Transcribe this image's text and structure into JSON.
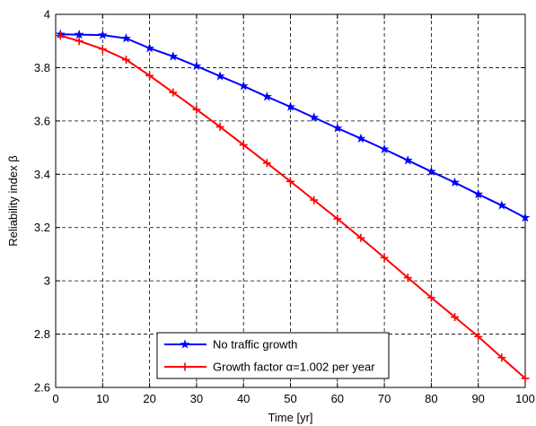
{
  "chart_data": {
    "type": "line",
    "title": "",
    "xlabel": "Time [yr]",
    "ylabel": "Reliability index β",
    "xlim": [
      0,
      100
    ],
    "ylim": [
      2.6,
      4.0
    ],
    "xticks": [
      0,
      10,
      20,
      30,
      40,
      50,
      60,
      70,
      80,
      90,
      100
    ],
    "yticks": [
      2.6,
      2.8,
      3,
      3.2,
      3.4,
      3.6,
      3.8,
      4
    ],
    "ytick_labels": [
      "2.6",
      "2.8",
      "3",
      "3.2",
      "3.4",
      "3.6",
      "3.8",
      "4"
    ],
    "grid": true,
    "legend_position": "bottom-center",
    "series": [
      {
        "name": "No traffic growth",
        "color": "#0000ff",
        "marker": "star",
        "x": [
          1,
          5,
          10,
          15,
          20,
          25,
          30,
          35,
          40,
          45,
          50,
          55,
          60,
          65,
          70,
          75,
          80,
          85,
          90,
          95,
          100
        ],
        "y": [
          3.925,
          3.924,
          3.922,
          3.91,
          3.873,
          3.842,
          3.806,
          3.768,
          3.731,
          3.691,
          3.653,
          3.613,
          3.573,
          3.534,
          3.494,
          3.452,
          3.41,
          3.369,
          3.325,
          3.283,
          3.237
        ]
      },
      {
        "name": "Growth factor α=1.002 per year",
        "color": "#ff0000",
        "marker": "plus",
        "x": [
          1,
          5,
          10,
          15,
          20,
          25,
          30,
          35,
          40,
          45,
          50,
          55,
          60,
          65,
          70,
          75,
          80,
          85,
          90,
          95,
          100
        ],
        "y": [
          3.92,
          3.9,
          3.87,
          3.83,
          3.77,
          3.707,
          3.643,
          3.578,
          3.51,
          3.442,
          3.373,
          3.303,
          3.233,
          3.161,
          3.087,
          3.012,
          2.937,
          2.864,
          2.791,
          2.712,
          2.634
        ]
      }
    ]
  }
}
